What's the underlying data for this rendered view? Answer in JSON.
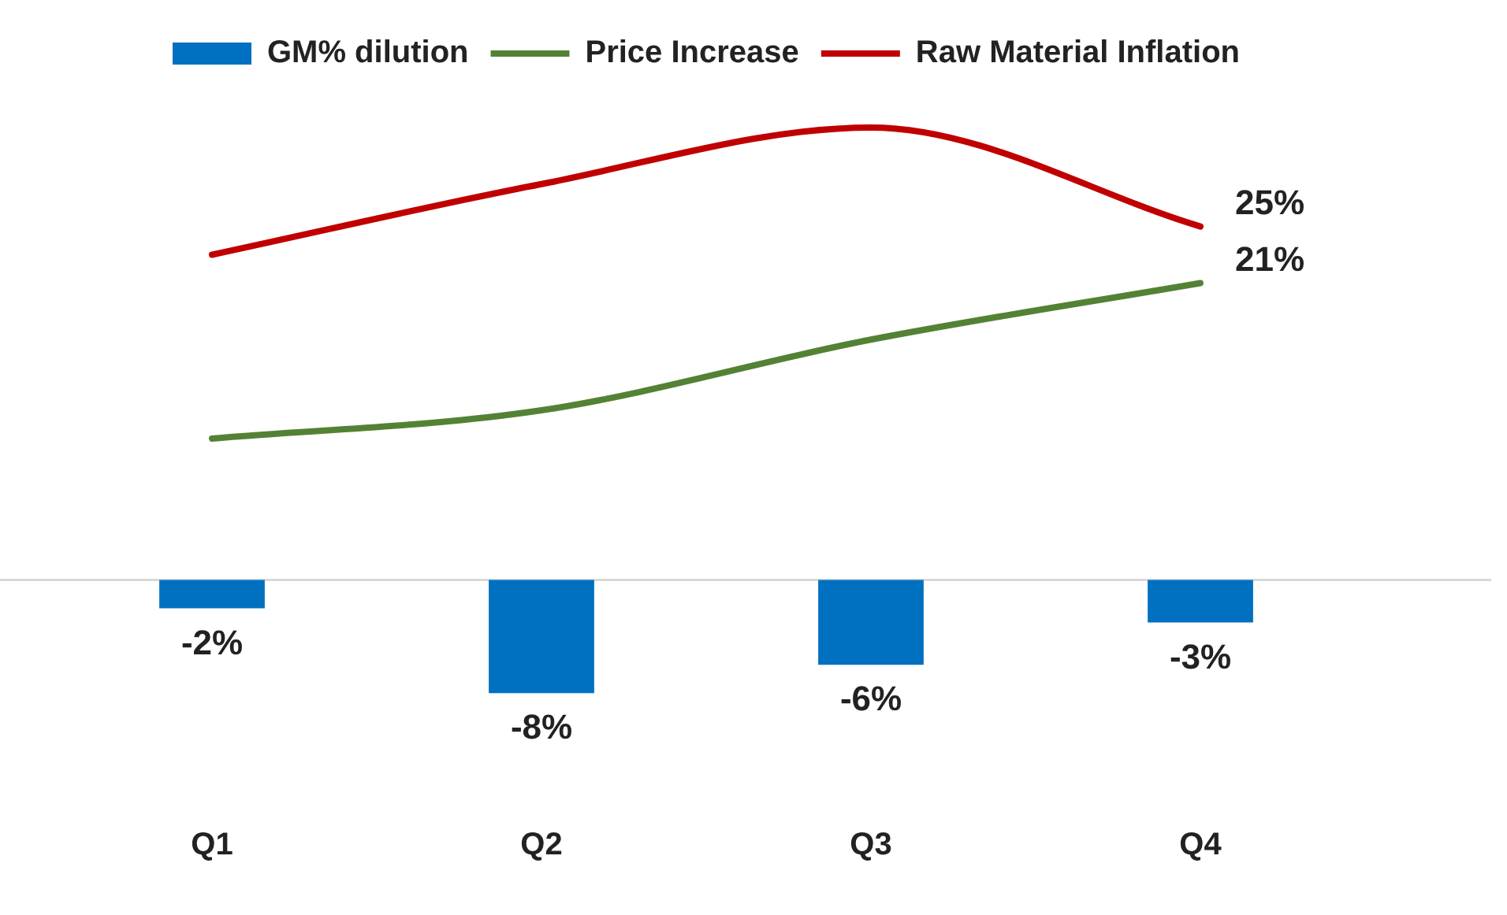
{
  "chart_data": {
    "type": "bar",
    "categories": [
      "Q1",
      "Q2",
      "Q3",
      "Q4"
    ],
    "series": [
      {
        "name": "GM% dilution",
        "color": "#0070c0",
        "values": [
          -2,
          -8,
          -6,
          -3
        ],
        "value_labels": [
          "-2%",
          "-8%",
          "-6%",
          "-3%"
        ]
      },
      {
        "name": "Price Increase",
        "type": "line",
        "color": "#548235",
        "values": [
          10,
          12,
          17,
          21
        ],
        "value_labels": [
          null,
          null,
          null,
          "21%"
        ]
      },
      {
        "name": "Raw Material Inflation",
        "type": "line",
        "color": "#c00000",
        "values": [
          23,
          28,
          32,
          25
        ],
        "value_labels": [
          null,
          null,
          null,
          "25%"
        ]
      }
    ],
    "tick_labels": "x",
    "grid": false,
    "legend": "top",
    "marker": "none",
    "ref_lines": [
      {
        "axis": "y",
        "value": 0,
        "color": "#d9d9d9"
      }
    ]
  }
}
